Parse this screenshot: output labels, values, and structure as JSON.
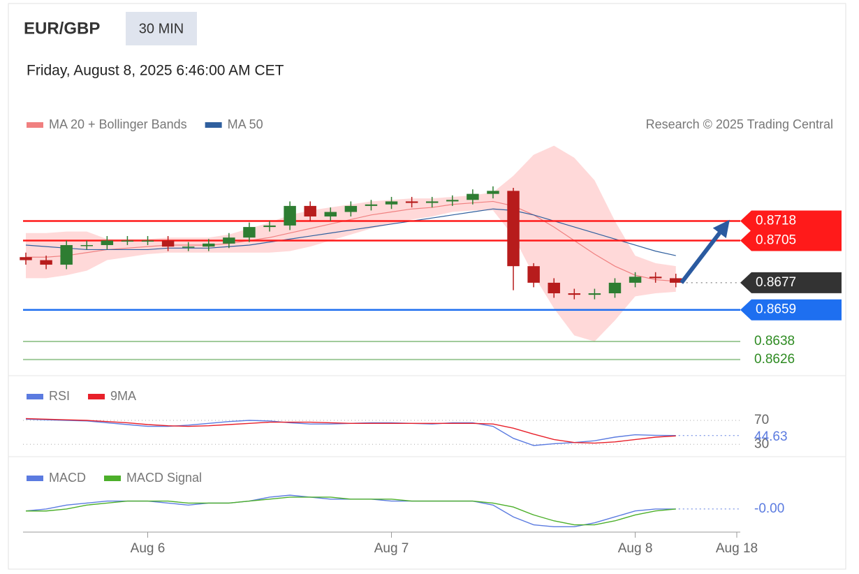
{
  "header": {
    "symbol": "EUR/GBP",
    "timeframe": "30 MIN",
    "datetime": "Friday, August 8, 2025 6:46:00 AM CET",
    "credit": "Research © 2025 Trading Central"
  },
  "chart_data": [
    {
      "type": "candlestick",
      "open": [
        0.8694,
        0.8692,
        0.8689,
        0.8702,
        0.8702,
        0.8705,
        0.8705,
        0.8705,
        0.8701,
        0.8701,
        0.8703,
        0.8707,
        0.8714,
        0.8715,
        0.8728,
        0.8721,
        0.8724,
        0.8728,
        0.8729,
        0.8731,
        0.873,
        0.8731,
        0.8732,
        0.8736,
        0.8738,
        0.8688,
        0.8677,
        0.867,
        0.8669,
        0.867,
        0.8677,
        0.8681,
        0.868
      ],
      "high": [
        0.8697,
        0.8695,
        0.8705,
        0.8705,
        0.8708,
        0.8708,
        0.8708,
        0.8708,
        0.8704,
        0.8706,
        0.871,
        0.8717,
        0.8718,
        0.8731,
        0.8731,
        0.8727,
        0.8731,
        0.8732,
        0.8734,
        0.8734,
        0.8734,
        0.8735,
        0.8739,
        0.8741,
        0.874,
        0.869,
        0.868,
        0.8673,
        0.8673,
        0.868,
        0.8684,
        0.8684,
        0.8683
      ],
      "low": [
        0.8689,
        0.8686,
        0.8686,
        0.8699,
        0.8699,
        0.8702,
        0.8702,
        0.8698,
        0.8698,
        0.8698,
        0.87,
        0.8704,
        0.8711,
        0.8712,
        0.8718,
        0.8718,
        0.8721,
        0.8725,
        0.8726,
        0.8727,
        0.8727,
        0.8728,
        0.8729,
        0.8733,
        0.8672,
        0.8674,
        0.8667,
        0.8666,
        0.8666,
        0.8667,
        0.8674,
        0.8677,
        0.8674
      ],
      "close": [
        0.8692,
        0.8689,
        0.8702,
        0.8702,
        0.8705,
        0.8705,
        0.8705,
        0.8701,
        0.8701,
        0.8703,
        0.8707,
        0.8714,
        0.8715,
        0.8728,
        0.8721,
        0.8724,
        0.8728,
        0.8729,
        0.8731,
        0.873,
        0.8731,
        0.8732,
        0.8736,
        0.8738,
        0.8688,
        0.8677,
        0.867,
        0.8669,
        0.867,
        0.8677,
        0.8681,
        0.868,
        0.8677
      ],
      "up_color": "#2e7d32",
      "down_color": "#b71c1c",
      "last_color": "#333333",
      "series": [
        {
          "name": "MA 20 + Bollinger Bands",
          "color": "#f08080",
          "band_color": "#ffd9d9",
          "values": [
            0.8694,
            0.8694,
            0.8695,
            0.8697,
            0.8699,
            0.87,
            0.8701,
            0.8702,
            0.8702,
            0.8702,
            0.8703,
            0.8705,
            0.8707,
            0.871,
            0.8713,
            0.8716,
            0.8719,
            0.8722,
            0.8724,
            0.8726,
            0.8727,
            0.8729,
            0.873,
            0.8731,
            0.8728,
            0.8722,
            0.8714,
            0.8705,
            0.8696,
            0.8688,
            0.8682,
            0.8679,
            0.8678
          ],
          "band_upper": [
            0.871,
            0.871,
            0.8711,
            0.8711,
            0.8706,
            0.8706,
            0.8706,
            0.8707,
            0.8707,
            0.8707,
            0.8709,
            0.8713,
            0.8717,
            0.8722,
            0.8725,
            0.8727,
            0.8729,
            0.8731,
            0.8732,
            0.8733,
            0.8733,
            0.8734,
            0.8735,
            0.8737,
            0.8748,
            0.8762,
            0.8768,
            0.876,
            0.8745,
            0.8718,
            0.8695,
            0.869,
            0.8688
          ],
          "band_lower": [
            0.868,
            0.868,
            0.8682,
            0.8685,
            0.8692,
            0.8694,
            0.8696,
            0.8697,
            0.8697,
            0.8697,
            0.8697,
            0.8697,
            0.8697,
            0.8698,
            0.8701,
            0.8705,
            0.8709,
            0.8713,
            0.8716,
            0.8719,
            0.8721,
            0.8724,
            0.8725,
            0.8725,
            0.8708,
            0.8682,
            0.866,
            0.8642,
            0.8638,
            0.8652,
            0.8668,
            0.867,
            0.8671
          ]
        },
        {
          "name": "MA 50",
          "color": "#2f5f9e",
          "values": [
            0.8702,
            0.8701,
            0.87,
            0.8699,
            0.8699,
            0.8699,
            0.8699,
            0.87,
            0.87,
            0.87,
            0.8701,
            0.8702,
            0.8704,
            0.8706,
            0.8708,
            0.871,
            0.8712,
            0.8714,
            0.8716,
            0.8718,
            0.872,
            0.8722,
            0.8724,
            0.8726,
            0.8725,
            0.8722,
            0.8718,
            0.8714,
            0.871,
            0.8706,
            0.8702,
            0.8698,
            0.8695
          ]
        }
      ],
      "levels": [
        {
          "value": 0.8718,
          "color": "#ff1a1a",
          "style": "tag"
        },
        {
          "value": 0.8705,
          "color": "#ff1a1a",
          "style": "tag"
        },
        {
          "value": 0.8659,
          "color": "#1e6ff0",
          "style": "tag"
        },
        {
          "value": 0.8638,
          "color": "#2e8b22",
          "style": "text"
        },
        {
          "value": 0.8626,
          "color": "#2e8b22",
          "style": "text"
        }
      ],
      "ylim": [
        0.8619,
        0.8772
      ],
      "xlim": [
        0,
        35
      ],
      "xticks": [
        {
          "value": 6,
          "label": "Aug 6"
        },
        {
          "value": 18,
          "label": "Aug 7"
        },
        {
          "value": 30,
          "label": "Aug 8"
        },
        {
          "value": 35,
          "label": "Aug 18"
        }
      ]
    },
    {
      "type": "line",
      "series": [
        {
          "name": "RSI",
          "color": "#5b7be0",
          "values": [
            72,
            71,
            70,
            69,
            66,
            63,
            60,
            60,
            62,
            65,
            68,
            70,
            69,
            66,
            64,
            64,
            65,
            66,
            66,
            65,
            64,
            66,
            66,
            60,
            40,
            28,
            31,
            33,
            36,
            42,
            46,
            45,
            44.63
          ]
        },
        {
          "name": "9MA",
          "color": "#e8202a",
          "values": [
            73,
            72,
            71,
            70,
            68,
            66,
            63,
            61,
            60,
            61,
            63,
            65,
            67,
            67,
            67,
            66,
            65,
            65,
            65,
            65,
            65,
            65,
            65,
            64,
            57,
            47,
            38,
            33,
            32,
            34,
            38,
            42,
            44
          ]
        }
      ],
      "ylim": [
        14,
        84
      ],
      "yticks": [
        70,
        30
      ]
    },
    {
      "type": "line",
      "series": [
        {
          "name": "MACD",
          "color": "#5b7be0",
          "values": [
            -0.0005,
            -0.0004,
            -0.0002,
            -0.0001,
            0,
            0,
            0,
            -0.0001,
            -0.0002,
            -0.0001,
            -0.0001,
            0,
            0.0002,
            0.0003,
            0.0002,
            0.0001,
            0.0001,
            0.0001,
            0,
            0,
            0,
            0,
            0,
            -0.0002,
            -0.0008,
            -0.0012,
            -0.0013,
            -0.0013,
            -0.0011,
            -0.0008,
            -0.0005,
            -0.0004,
            -0.0004
          ]
        },
        {
          "name": "MACD Signal",
          "color": "#4caf2a",
          "values": [
            -0.0005,
            -0.0005,
            -0.0004,
            -0.0002,
            -0.0001,
            0,
            0,
            0,
            -0.0001,
            -0.0001,
            -0.0001,
            0,
            0.0001,
            0.0002,
            0.0002,
            0.0002,
            0.0001,
            0.0001,
            0.0001,
            0,
            0,
            0,
            0,
            -0.0001,
            -0.0003,
            -0.0007,
            -0.001,
            -0.0012,
            -0.0012,
            -0.001,
            -0.0007,
            -0.0005,
            -0.0004
          ]
        }
      ],
      "last_value": {
        "value": -0.0004,
        "label": "-0.00"
      },
      "ylim": [
        -0.0015,
        0.0008
      ]
    }
  ]
}
